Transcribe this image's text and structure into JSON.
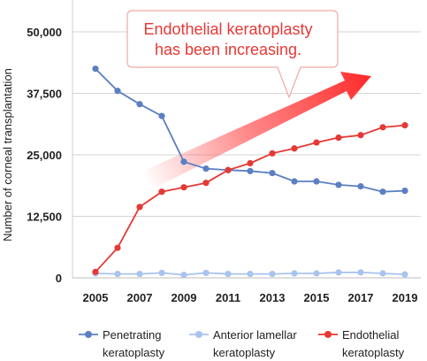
{
  "chart_data": {
    "type": "line",
    "ylabel": "Number of corneal transplantation",
    "ylim": [
      0,
      50000
    ],
    "yticks": [
      0,
      12500,
      25000,
      37500,
      50000
    ],
    "ytick_labels": [
      "0",
      "12,500",
      "25,000",
      "37,500",
      "50,000"
    ],
    "xlim": [
      2005,
      2019
    ],
    "xticks": [
      2005,
      2007,
      2009,
      2011,
      2013,
      2015,
      2017,
      2019
    ],
    "xtick_labels": [
      "2005",
      "2007",
      "2009",
      "2011",
      "2013",
      "2015",
      "2017",
      "2019"
    ],
    "x": [
      2005,
      2006,
      2007,
      2008,
      2009,
      2010,
      2011,
      2012,
      2013,
      2014,
      2015,
      2016,
      2017,
      2018,
      2019
    ],
    "series": [
      {
        "name": "Penetrating keratoplasty",
        "label_lines": [
          "Penetrating",
          "keratoplasty"
        ],
        "color": "#5b7fc2",
        "values": [
          42500,
          38000,
          35300,
          32900,
          23600,
          22200,
          21900,
          21700,
          21300,
          19600,
          19600,
          18900,
          18600,
          17500,
          17700
        ]
      },
      {
        "name": "Anterior lamellar keratoplasty",
        "label_lines": [
          "Anterior lamellar",
          "keratoplasty"
        ],
        "color": "#a9c3ee",
        "values": [
          900,
          800,
          800,
          1000,
          600,
          1000,
          800,
          800,
          800,
          900,
          900,
          1100,
          1100,
          900,
          700
        ]
      },
      {
        "name": "Endothelial keratoplasty",
        "label_lines": [
          "Endothelial",
          "keratoplasty"
        ],
        "color": "#e53935",
        "values": [
          1200,
          6100,
          14400,
          17500,
          18400,
          19300,
          21900,
          23300,
          25300,
          26300,
          27500,
          28500,
          29000,
          30600,
          31000
        ]
      }
    ],
    "grid": "horizontal",
    "legend_position": "bottom",
    "annotation": {
      "lines": [
        "Endothelial keratoplasty",
        "has been increasing."
      ],
      "color": "#e53935"
    }
  }
}
